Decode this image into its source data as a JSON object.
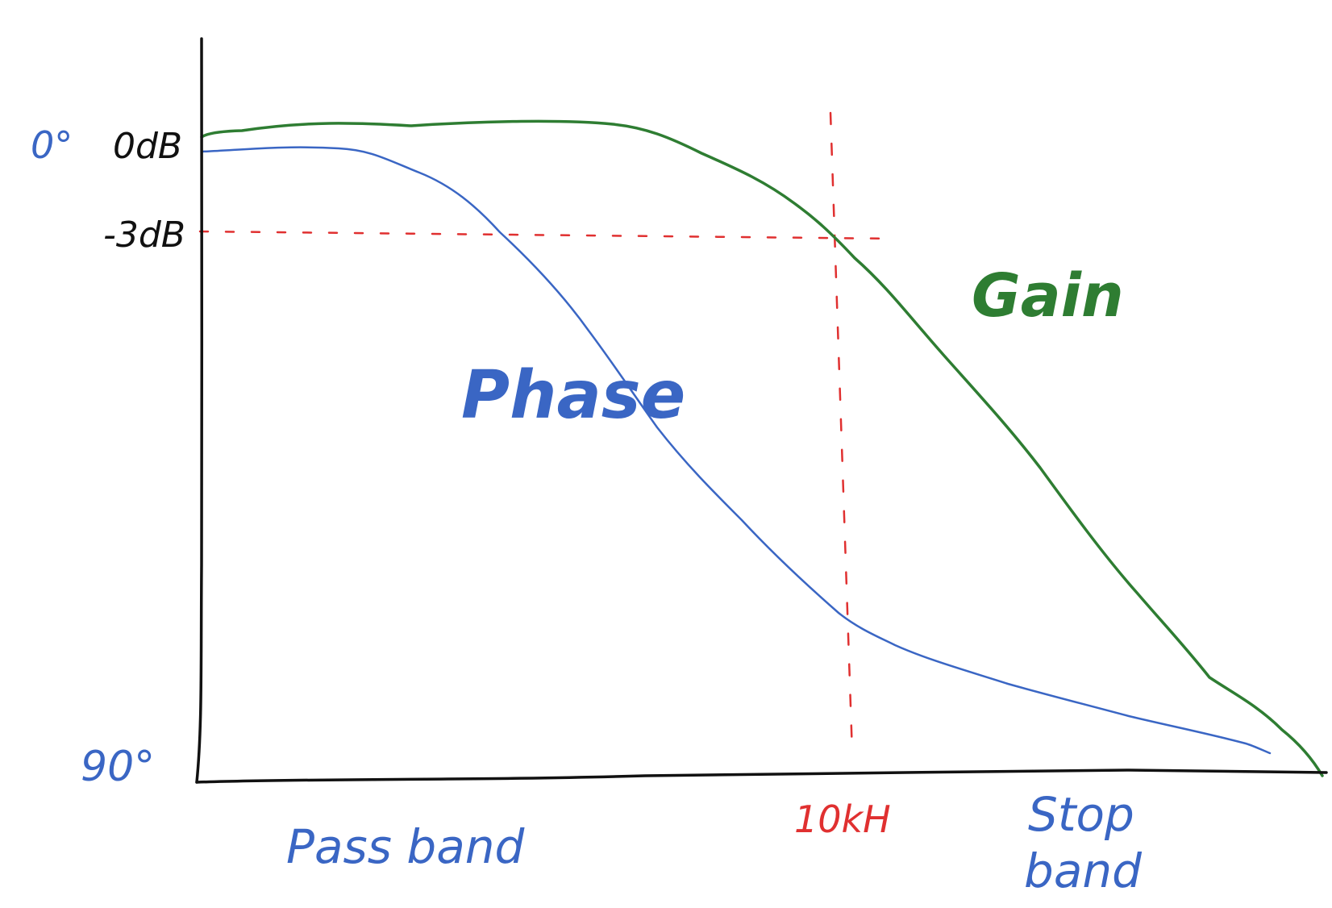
{
  "colors": {
    "axis": "#111111",
    "gain": "#2e7d32",
    "phase": "#3a66c4",
    "guide": "#e03030",
    "background": "#ffffff"
  },
  "labels": {
    "phase_top": "0°",
    "gain_top": "0dB",
    "gain_3db": "-3dB",
    "phase_bottom": "90°",
    "cutoff": "10kH",
    "pass_band": "Pass band",
    "stop_band_line1": "Stop",
    "stop_band_line2": "band",
    "gain_curve": "Gain",
    "phase_curve": "Phase"
  }
}
